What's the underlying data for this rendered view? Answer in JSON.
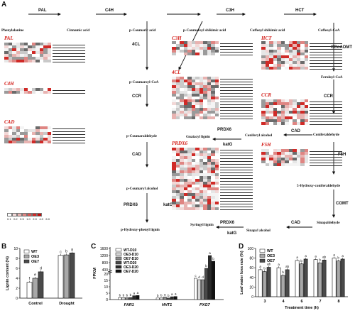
{
  "panels": {
    "A": "A",
    "B": "B",
    "C": "C",
    "D": "D"
  },
  "compounds": {
    "phenylalanine": "Phenylalanine",
    "cinnamic": "Cinnamic acid",
    "pcoumaric": "p-Coumaric acid",
    "pcoumaroylshikimic": "p-Coumaroyl shikimic acid",
    "caffeoylshikimic": "Caffeoyl shikimic acid",
    "caffeoylcoa": "Caffeoyl-CoA",
    "pcoumaroylcoa": "p-Coumaroyl-CoA",
    "feruloylcoa": "Feruloyl-CoA",
    "pcoumaraldehyde": "p-Coumaraldehyde",
    "coniferaldehyde": "Coniferaldehyde",
    "coniferylalcohol": "Coniferyl alcohol",
    "guaiacyl": "Guaiacyl lignin",
    "pcoumarylalcohol": "p-Coumaryl alcohol",
    "hydroxyconifer": "5-Hydroxy-coniferaldehyde",
    "phydroxyphenyl": "p-Hydroxy-phenyl lignin",
    "syringyl": "Syringyl lignin",
    "sinapylalcohol": "Sinapyl alcohol",
    "sinapaldehyde": "Sinapaldehyde"
  },
  "enzymes": {
    "PAL": "PAL",
    "C4H": "C4H",
    "C3H": "C3H",
    "HCT": "HCT",
    "4CL": "4CL",
    "CCoAOMT": "CCoAOMT",
    "CCR": "CCR",
    "CAD": "CAD",
    "PRDX6": "PRDX6",
    "katG": "katG",
    "F5H": "F5H",
    "COMT": "COMT"
  },
  "legend_labels": [
    "0.1",
    "0.2",
    "0.5",
    "1.0",
    "2.0",
    "4.0",
    "6.0"
  ],
  "panelB": {
    "ylabel": "Lignin content (%)",
    "legend": [
      "WT",
      "OE3",
      "OE7"
    ],
    "groups": [
      "Control",
      "Drought"
    ],
    "values": [
      [
        3.2,
        4.0,
        5.3
      ],
      [
        8.6,
        8.7,
        9.1
      ]
    ],
    "letters": [
      [
        "f",
        "e",
        "d"
      ],
      [
        "c",
        "b",
        "a"
      ]
    ],
    "yticks": [
      "0",
      "2",
      "4",
      "6",
      "8",
      "10"
    ],
    "ylim": [
      0,
      10
    ]
  },
  "panelC": {
    "ylabel": "FPKM",
    "legend": [
      "WT-D10",
      "OE3-D10",
      "OE7-D10",
      "WT-D20",
      "OE3-D20",
      "OE7-D20"
    ],
    "genes": [
      "FAR1",
      "HHT1",
      "PXG7"
    ],
    "yticks_low": [
      "0",
      "5",
      "10",
      "15",
      "20"
    ],
    "yticks_high": [
      "400",
      "800",
      "1200",
      "1600"
    ],
    "letters": [
      [
        "b",
        "b",
        "b",
        "b",
        "a",
        "a"
      ],
      [
        "b",
        "b",
        "a",
        "b",
        "a",
        "a"
      ],
      [
        "c",
        "d",
        "d",
        "b",
        "a",
        "b"
      ]
    ]
  },
  "panelD": {
    "ylabel": "Leaf water loss rate (%)",
    "xlabel": "Treatment time (h)",
    "legend": [
      "WT",
      "OE3",
      "OE7"
    ],
    "times": [
      "3",
      "4",
      "6",
      "7",
      "8"
    ],
    "values": [
      [
        56,
        52,
        61
      ],
      [
        60,
        44,
        56
      ],
      [
        75,
        68,
        78
      ],
      [
        77,
        70,
        76
      ],
      [
        80,
        74,
        78
      ]
    ],
    "letters": [
      [
        "a",
        "b",
        "ab"
      ],
      [
        "a",
        "b",
        "ab"
      ],
      [
        "a",
        "b",
        "a"
      ],
      [
        "a",
        "b",
        "ab"
      ],
      [
        "a",
        "b",
        "a"
      ]
    ],
    "yticks": [
      "0",
      "20",
      "40",
      "60",
      "80",
      "100"
    ],
    "ylim": [
      0,
      100
    ]
  },
  "colors": {
    "red": "#d4201b",
    "dark": "#111111"
  }
}
